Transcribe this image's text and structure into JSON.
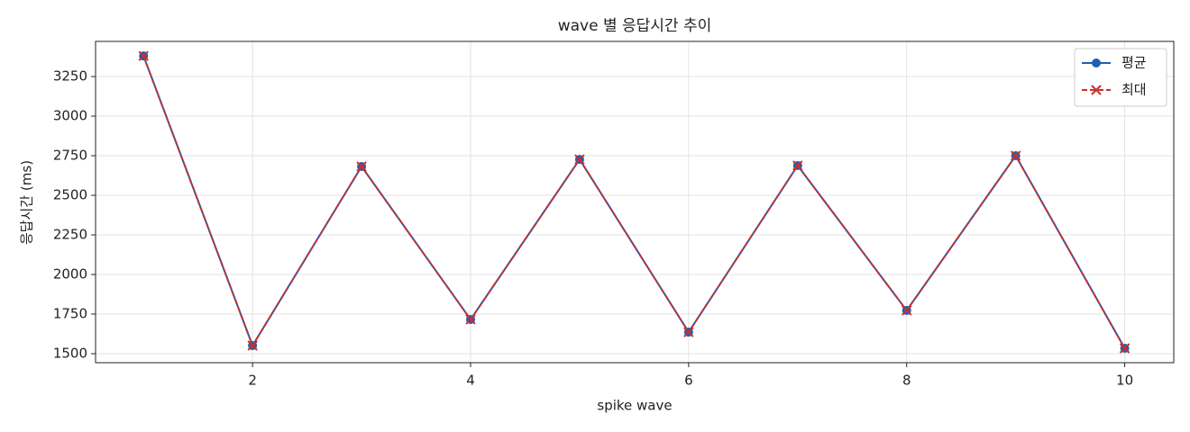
{
  "chart_data": {
    "type": "line",
    "title": "wave 별 응답시간 추이",
    "xlabel": "spike wave",
    "ylabel": "응답시간 (ms)",
    "x": [
      1,
      2,
      3,
      4,
      5,
      6,
      7,
      8,
      9,
      10
    ],
    "series": [
      {
        "name": "평균",
        "color": "#1f5fb5",
        "marker": "o",
        "linestyle": "solid",
        "values": [
          3380,
          1551,
          2682,
          1716,
          2727,
          1636,
          2688,
          1773,
          2750,
          1534
        ]
      },
      {
        "name": "최대",
        "color": "#c9302c",
        "marker": "x",
        "linestyle": "dashed",
        "values": [
          3380,
          1551,
          2682,
          1716,
          2727,
          1636,
          2688,
          1773,
          2750,
          1534
        ]
      }
    ],
    "xlim": [
      0.56,
      10.45
    ],
    "xticks": [
      2,
      4,
      6,
      8,
      10
    ],
    "ylim": [
      1443,
      3472
    ],
    "yticks": [
      1500,
      1750,
      2000,
      2250,
      2500,
      2750,
      3000,
      3250
    ],
    "grid": true,
    "legend": "upper right"
  }
}
